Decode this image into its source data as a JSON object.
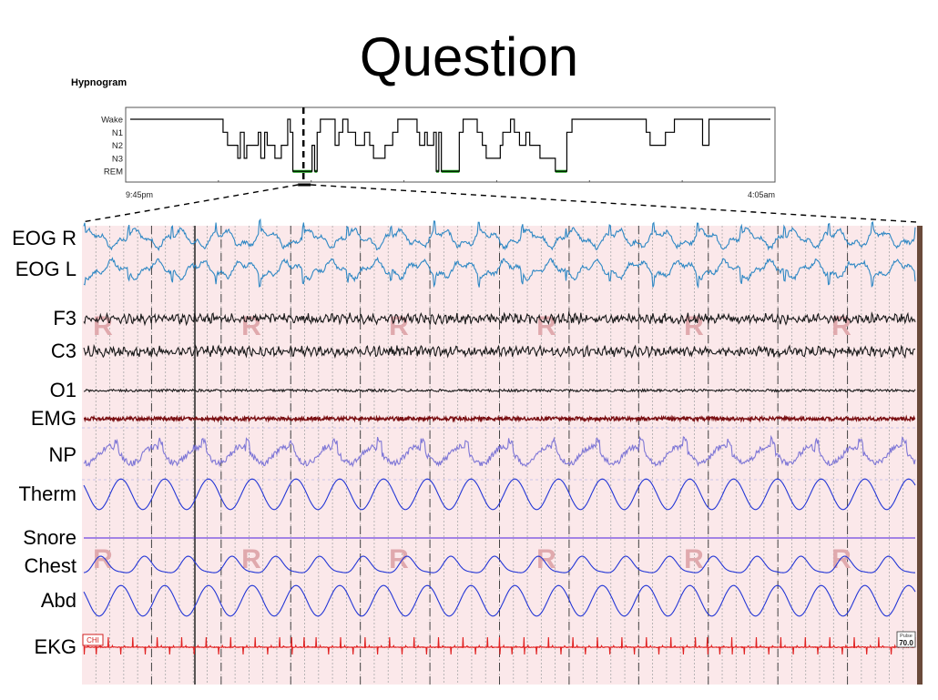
{
  "slide": {
    "title": "Question"
  },
  "chart_data": [
    {
      "type": "line",
      "title": "Hypnogram",
      "y_categories": [
        "Wake",
        "N1",
        "N2",
        "N3",
        "REM"
      ],
      "x_tick_labels": [
        "9:45pm",
        "4:05am"
      ],
      "grid": false,
      "highlight_stage": "REM",
      "highlight_color": "#119911",
      "line_color": "#000000",
      "steps": [
        [
          0.0,
          "Wake"
        ],
        [
          0.145,
          "N1"
        ],
        [
          0.152,
          "N2"
        ],
        [
          0.168,
          "N3"
        ],
        [
          0.172,
          "N1"
        ],
        [
          0.178,
          "N3"
        ],
        [
          0.182,
          "N2"
        ],
        [
          0.2,
          "N1"
        ],
        [
          0.204,
          "N3"
        ],
        [
          0.21,
          "N1"
        ],
        [
          0.214,
          "N2"
        ],
        [
          0.226,
          "N3"
        ],
        [
          0.236,
          "N2"
        ],
        [
          0.246,
          "Wake"
        ],
        [
          0.25,
          "N1"
        ],
        [
          0.254,
          "REM"
        ],
        [
          0.284,
          "N2"
        ],
        [
          0.288,
          "REM"
        ],
        [
          0.292,
          "N1"
        ],
        [
          0.297,
          "Wake"
        ],
        [
          0.32,
          "N2"
        ],
        [
          0.326,
          "N1"
        ],
        [
          0.332,
          "Wake"
        ],
        [
          0.34,
          "N1"
        ],
        [
          0.352,
          "N2"
        ],
        [
          0.366,
          "N1"
        ],
        [
          0.374,
          "N2"
        ],
        [
          0.38,
          "N3"
        ],
        [
          0.398,
          "N2"
        ],
        [
          0.41,
          "N1"
        ],
        [
          0.418,
          "Wake"
        ],
        [
          0.448,
          "N1"
        ],
        [
          0.452,
          "N2"
        ],
        [
          0.46,
          "N1"
        ],
        [
          0.464,
          "N2"
        ],
        [
          0.474,
          "N1"
        ],
        [
          0.478,
          "REM"
        ],
        [
          0.482,
          "N1"
        ],
        [
          0.486,
          "REM"
        ],
        [
          0.514,
          "N1"
        ],
        [
          0.52,
          "Wake"
        ],
        [
          0.542,
          "N1"
        ],
        [
          0.55,
          "N2"
        ],
        [
          0.556,
          "N3"
        ],
        [
          0.578,
          "N2"
        ],
        [
          0.582,
          "N1"
        ],
        [
          0.594,
          "Wake"
        ],
        [
          0.6,
          "N1"
        ],
        [
          0.608,
          "N2"
        ],
        [
          0.618,
          "N1"
        ],
        [
          0.624,
          "N2"
        ],
        [
          0.64,
          "N3"
        ],
        [
          0.664,
          "REM"
        ],
        [
          0.682,
          "N1"
        ],
        [
          0.69,
          "Wake"
        ],
        [
          0.806,
          "N1"
        ],
        [
          0.812,
          "N2"
        ],
        [
          0.836,
          "N1"
        ],
        [
          0.85,
          "Wake"
        ],
        [
          0.894,
          "N2"
        ],
        [
          0.904,
          "Wake"
        ],
        [
          1.0,
          "Wake"
        ]
      ],
      "selection": {
        "start": 0.262,
        "end": 0.282
      }
    },
    {
      "type": "line",
      "title": "",
      "channels": [
        {
          "label": "EOG R",
          "color": "#2f88c4",
          "kind": "eog_r"
        },
        {
          "label": "EOG L",
          "color": "#2f88c4",
          "kind": "eog_l"
        },
        {
          "label": "F3",
          "color": "#1a1a1a",
          "kind": "eeg"
        },
        {
          "label": "C3",
          "color": "#1a1a1a",
          "kind": "eeg"
        },
        {
          "label": "O1",
          "color": "#1a1a1a",
          "kind": "eeg_small"
        },
        {
          "label": "EMG",
          "color": "#7a0f12",
          "kind": "emg"
        },
        {
          "label": "NP",
          "color": "#7f77d6",
          "kind": "np"
        },
        {
          "label": "Therm",
          "color": "#2336d6",
          "kind": "resp"
        },
        {
          "label": "Snore",
          "color": "#4b1ee0",
          "kind": "flat"
        },
        {
          "label": "Chest",
          "color": "#2336d6",
          "kind": "resp_small"
        },
        {
          "label": "Abd",
          "color": "#2336d6",
          "kind": "resp"
        },
        {
          "label": "EKG",
          "color": "#e02020",
          "kind": "ekg"
        }
      ],
      "stage_marker_text": "R",
      "stage_marker_count": 6,
      "ekg_corner_box": "CHI",
      "pulse_box": {
        "label": "Pulse",
        "value": "70.0"
      },
      "background": "#fbe8ea"
    }
  ]
}
